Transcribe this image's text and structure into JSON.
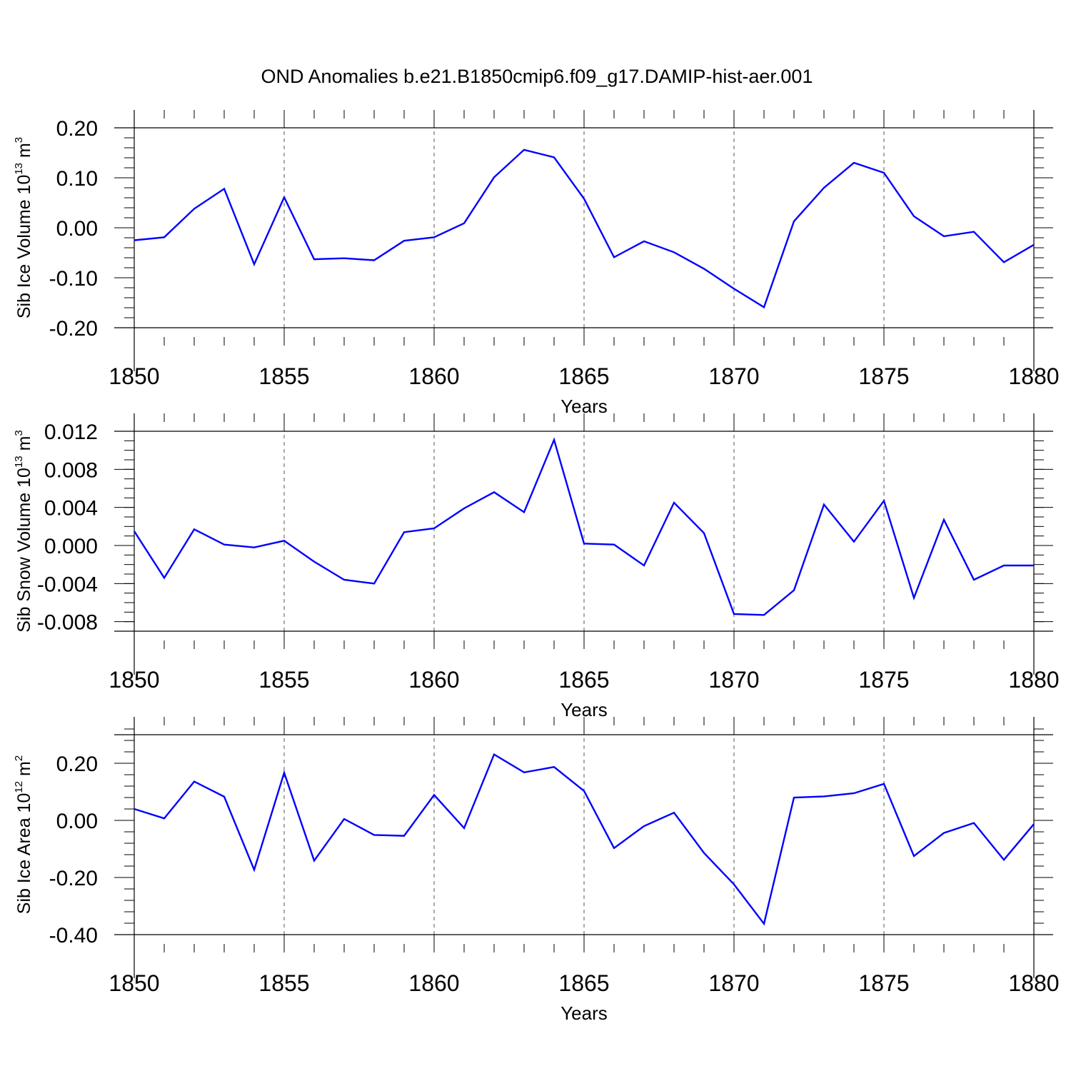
{
  "title": "OND Anomalies b.e21.B1850cmip6.f09_g17.DAMIP-hist-aer.001",
  "colors": {
    "line": "#0000ff",
    "axis": "#000000",
    "grid": "#555555"
  },
  "chart_data": [
    {
      "type": "line",
      "ylabel": "Sib Ice Volume 10",
      "ylabel_exp": "13",
      "ylabel_unit": " m",
      "ylabel_unit_exp": "3",
      "xlabel": "Years",
      "xlim": [
        1850,
        1880
      ],
      "ylim": [
        -0.2,
        0.2
      ],
      "yticks": [
        -0.2,
        -0.1,
        0.0,
        0.1,
        0.2
      ],
      "ytick_labels": [
        "-0.20",
        "-0.10",
        "0.00",
        "0.10",
        "0.20"
      ],
      "xticks": [
        1850,
        1855,
        1860,
        1865,
        1870,
        1875,
        1880
      ],
      "xtick_labels": [
        "1850",
        "1855",
        "1860",
        "1865",
        "1870",
        "1875",
        "1880"
      ],
      "ytick_minor_step": 0.02,
      "x": [
        1850,
        1851,
        1852,
        1853,
        1854,
        1855,
        1856,
        1857,
        1858,
        1859,
        1860,
        1861,
        1862,
        1863,
        1864,
        1865,
        1866,
        1867,
        1868,
        1869,
        1870,
        1871,
        1872,
        1873,
        1874,
        1875,
        1876,
        1877,
        1878,
        1879,
        1880
      ],
      "values": [
        -0.025,
        -0.019,
        0.038,
        0.078,
        -0.073,
        0.061,
        -0.063,
        -0.061,
        -0.065,
        -0.026,
        -0.019,
        0.009,
        0.101,
        0.156,
        0.141,
        0.058,
        -0.059,
        -0.027,
        -0.049,
        -0.082,
        -0.122,
        -0.159,
        0.013,
        0.08,
        0.13,
        0.11,
        0.023,
        -0.017,
        -0.008,
        -0.069,
        -0.034
      ]
    },
    {
      "type": "line",
      "ylabel": "Sib Snow Volume 10",
      "ylabel_exp": "13",
      "ylabel_unit": " m",
      "ylabel_unit_exp": "3",
      "xlabel": "Years",
      "xlim": [
        1850,
        1880
      ],
      "ylim": [
        -0.009,
        0.012
      ],
      "yticks": [
        -0.008,
        -0.004,
        0.0,
        0.004,
        0.008,
        0.012
      ],
      "ytick_labels": [
        "-0.008",
        "-0.004",
        "0.000",
        "0.004",
        "0.008",
        "0.012"
      ],
      "xticks": [
        1850,
        1855,
        1860,
        1865,
        1870,
        1875,
        1880
      ],
      "xtick_labels": [
        "1850",
        "1855",
        "1860",
        "1865",
        "1870",
        "1875",
        "1880"
      ],
      "ytick_minor_step": 0.001,
      "x": [
        1850,
        1851,
        1852,
        1853,
        1854,
        1855,
        1856,
        1857,
        1858,
        1859,
        1860,
        1861,
        1862,
        1863,
        1864,
        1865,
        1866,
        1867,
        1868,
        1869,
        1870,
        1871,
        1872,
        1873,
        1874,
        1875,
        1876,
        1877,
        1878,
        1879,
        1880
      ],
      "values": [
        0.0015,
        -0.0034,
        0.0017,
        0.0001,
        -0.0002,
        0.0005,
        -0.0017,
        -0.0036,
        -0.004,
        0.0014,
        0.0018,
        0.0039,
        0.0056,
        0.0035,
        0.0111,
        0.0002,
        0.0001,
        -0.0021,
        0.0045,
        0.0013,
        -0.0072,
        -0.0073,
        -0.0047,
        0.0043,
        0.0004,
        0.0047,
        -0.0055,
        0.0027,
        -0.0036,
        -0.0021,
        -0.0021
      ]
    },
    {
      "type": "line",
      "ylabel": "Sib Ice Area 10",
      "ylabel_exp": "12",
      "ylabel_unit": " m",
      "ylabel_unit_exp": "2",
      "xlabel": "Years",
      "xlim": [
        1850,
        1880
      ],
      "ylim": [
        -0.4,
        0.3
      ],
      "yticks": [
        -0.4,
        -0.2,
        0.0,
        0.2
      ],
      "ytick_labels": [
        "-0.40",
        "-0.20",
        "0.00",
        "0.20"
      ],
      "xticks": [
        1850,
        1855,
        1860,
        1865,
        1870,
        1875,
        1880
      ],
      "xtick_labels": [
        "1850",
        "1855",
        "1860",
        "1865",
        "1870",
        "1875",
        "1880"
      ],
      "ytick_minor_step": 0.04,
      "x": [
        1850,
        1851,
        1852,
        1853,
        1854,
        1855,
        1856,
        1857,
        1858,
        1859,
        1860,
        1861,
        1862,
        1863,
        1864,
        1865,
        1866,
        1867,
        1868,
        1869,
        1870,
        1871,
        1872,
        1873,
        1874,
        1875,
        1876,
        1877,
        1878,
        1879,
        1880
      ],
      "values": [
        0.04,
        0.007,
        0.136,
        0.083,
        -0.173,
        0.167,
        -0.141,
        0.005,
        -0.051,
        -0.054,
        0.089,
        -0.027,
        0.231,
        0.168,
        0.187,
        0.103,
        -0.097,
        -0.02,
        0.027,
        -0.114,
        -0.224,
        -0.362,
        0.08,
        0.084,
        0.095,
        0.128,
        -0.125,
        -0.044,
        -0.009,
        -0.138,
        -0.013
      ]
    }
  ]
}
